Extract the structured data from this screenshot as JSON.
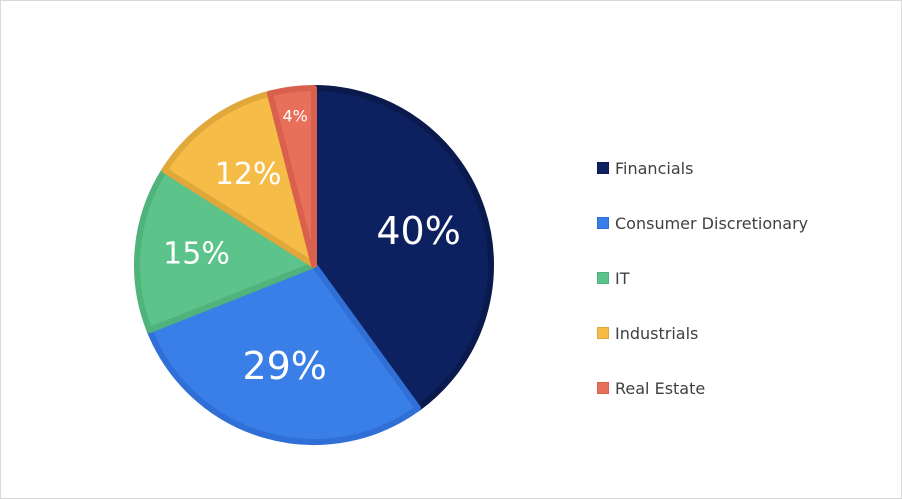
{
  "chart_data": {
    "type": "pie",
    "title": "",
    "categories": [
      "Financials",
      "Consumer Discretionary",
      "IT",
      "Industrials",
      "Real Estate"
    ],
    "values": [
      40,
      29,
      15,
      12,
      4
    ],
    "value_labels": [
      "40%",
      "29%",
      "15%",
      "12%",
      "4%"
    ],
    "colors": [
      "#0d2160",
      "#3a7ee8",
      "#5cc48a",
      "#f5bd48",
      "#e8705a"
    ],
    "edge_colors": [
      "#0a1a4d",
      "#2f6fd6",
      "#4fb37b",
      "#e0a73a",
      "#d9604c"
    ],
    "start_angle_deg": 0,
    "direction": "clockwise",
    "legend": {
      "position": "right",
      "items": [
        "Financials",
        "Consumer Discretionary",
        "IT",
        "Industrials",
        "Real Estate"
      ]
    }
  }
}
